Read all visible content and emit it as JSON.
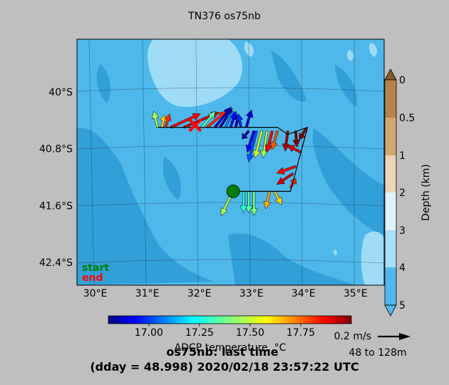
{
  "title": "TN376 os75nb",
  "footer": {
    "line1": "os75nb: last time",
    "line2": "(dday = 48.998) 2020/02/18 23:57:22 UTC"
  },
  "colorbar": {
    "label": "ADCP temperature, °C",
    "ticks": [
      "17.00",
      "17.25",
      "17.50",
      "17.75"
    ]
  },
  "depth_bar": {
    "label": "Depth (km)",
    "ticks": [
      "0",
      "0.5",
      "1",
      "2",
      "3",
      "4",
      "5"
    ]
  },
  "scale": {
    "label": "0.2 m/s",
    "range": "48 to 128m"
  },
  "legend": {
    "start": "start",
    "end": "end",
    "start_color": "#008000",
    "end_color": "#ff0000"
  },
  "colors": {
    "land": "#4fb8ea",
    "deep": "#32a0d8",
    "shallow": "#9edcf6"
  },
  "chart_data": {
    "type": "map-vectors",
    "title": "TN376 os75nb",
    "x_tick_labels": [
      "30°E",
      "31°E",
      "32°E",
      "33°E",
      "34°E",
      "35°E"
    ],
    "y_tick_labels": [
      "40°S",
      "40.8°S",
      "41.6°S",
      "42.4°S"
    ],
    "xlim": [
      29.65,
      35.55
    ],
    "ylim": [
      42.72,
      39.26
    ],
    "track": [
      [
        31.2,
        40.5
      ],
      [
        33.5,
        40.5
      ],
      [
        33.7,
        40.6
      ],
      [
        34.08,
        40.5
      ],
      [
        33.75,
        41.4
      ],
      [
        32.65,
        41.4
      ]
    ],
    "start_marker": [
      32.65,
      41.4
    ],
    "end_marker": [
      31.92,
      40.47
    ],
    "temperature_range": [
      16.8,
      18.0
    ],
    "vectors": [
      {
        "lon": 31.2,
        "lat": 40.5,
        "u": -0.03,
        "v": 0.12,
        "temp": 17.45
      },
      {
        "lon": 31.28,
        "lat": 40.5,
        "u": 0.02,
        "v": 0.09,
        "temp": 17.6
      },
      {
        "lon": 31.35,
        "lat": 40.5,
        "u": 0.03,
        "v": 0.1,
        "temp": 17.8
      },
      {
        "lon": 31.45,
        "lat": 40.5,
        "u": 0.22,
        "v": 0.1,
        "temp": 17.85
      },
      {
        "lon": 31.7,
        "lat": 40.5,
        "u": 0.26,
        "v": 0.11,
        "temp": 17.9
      },
      {
        "lon": 32.05,
        "lat": 40.5,
        "u": 0.1,
        "v": 0.12,
        "temp": 17.35
      },
      {
        "lon": 32.15,
        "lat": 40.5,
        "u": 0.14,
        "v": 0.12,
        "temp": 17.8
      },
      {
        "lon": 32.3,
        "lat": 40.5,
        "u": 0.12,
        "v": 0.15,
        "temp": 16.9
      },
      {
        "lon": 32.4,
        "lat": 40.5,
        "u": 0.09,
        "v": 0.14,
        "temp": 16.85
      },
      {
        "lon": 32.5,
        "lat": 40.5,
        "u": 0.06,
        "v": 0.12,
        "temp": 17.1
      },
      {
        "lon": 32.6,
        "lat": 40.5,
        "u": 0.04,
        "v": 0.12,
        "temp": 16.95
      },
      {
        "lon": 32.7,
        "lat": 40.5,
        "u": 0.02,
        "v": 0.1,
        "temp": 16.85
      },
      {
        "lon": 32.8,
        "lat": 40.5,
        "u": -0.02,
        "v": 0.1,
        "temp": 17.0
      },
      {
        "lon": 32.9,
        "lat": 40.5,
        "u": 0.04,
        "v": 0.13,
        "temp": 16.9
      },
      {
        "lon": 32.95,
        "lat": 40.55,
        "u": -0.05,
        "v": -0.06,
        "temp": 16.85
      },
      {
        "lon": 33.05,
        "lat": 40.55,
        "u": -0.05,
        "v": -0.16,
        "temp": 16.95
      },
      {
        "lon": 33.1,
        "lat": 40.55,
        "u": -0.06,
        "v": -0.23,
        "temp": 17.05
      },
      {
        "lon": 33.2,
        "lat": 40.55,
        "u": -0.05,
        "v": -0.2,
        "temp": 17.5
      },
      {
        "lon": 33.3,
        "lat": 40.55,
        "u": -0.03,
        "v": -0.2,
        "temp": 17.45
      },
      {
        "lon": 33.4,
        "lat": 40.55,
        "u": -0.04,
        "v": -0.16,
        "temp": 17.85
      },
      {
        "lon": 33.5,
        "lat": 40.55,
        "u": -0.04,
        "v": -0.14,
        "temp": 17.75
      },
      {
        "lon": 33.7,
        "lat": 40.55,
        "u": -0.02,
        "v": -0.15,
        "temp": 17.95
      },
      {
        "lon": 33.85,
        "lat": 40.55,
        "u": 0.01,
        "v": -0.12,
        "temp": 18.0
      },
      {
        "lon": 34.05,
        "lat": 40.52,
        "u": -0.05,
        "v": -0.08,
        "temp": 18.0
      },
      {
        "lon": 33.95,
        "lat": 40.85,
        "u": -0.1,
        "v": 0.05,
        "temp": 17.9
      },
      {
        "lon": 33.85,
        "lat": 41.05,
        "u": -0.14,
        "v": -0.05,
        "temp": 17.85
      },
      {
        "lon": 33.8,
        "lat": 41.15,
        "u": -0.12,
        "v": -0.08,
        "temp": 17.9
      },
      {
        "lon": 33.75,
        "lat": 41.35,
        "u": 0.04,
        "v": 0.07,
        "temp": 17.8
      },
      {
        "lon": 33.45,
        "lat": 41.4,
        "u": 0.05,
        "v": -0.1,
        "temp": 17.6
      },
      {
        "lon": 33.35,
        "lat": 41.4,
        "u": -0.03,
        "v": -0.13,
        "temp": 17.65
      },
      {
        "lon": 33.05,
        "lat": 41.4,
        "u": 0.0,
        "v": -0.18,
        "temp": 17.4
      },
      {
        "lon": 32.95,
        "lat": 41.4,
        "u": 0.0,
        "v": -0.16,
        "temp": 17.35
      },
      {
        "lon": 32.85,
        "lat": 41.4,
        "u": 0.0,
        "v": -0.16,
        "temp": 17.3
      },
      {
        "lon": 32.65,
        "lat": 41.4,
        "u": -0.09,
        "v": -0.18,
        "temp": 17.45
      }
    ]
  }
}
